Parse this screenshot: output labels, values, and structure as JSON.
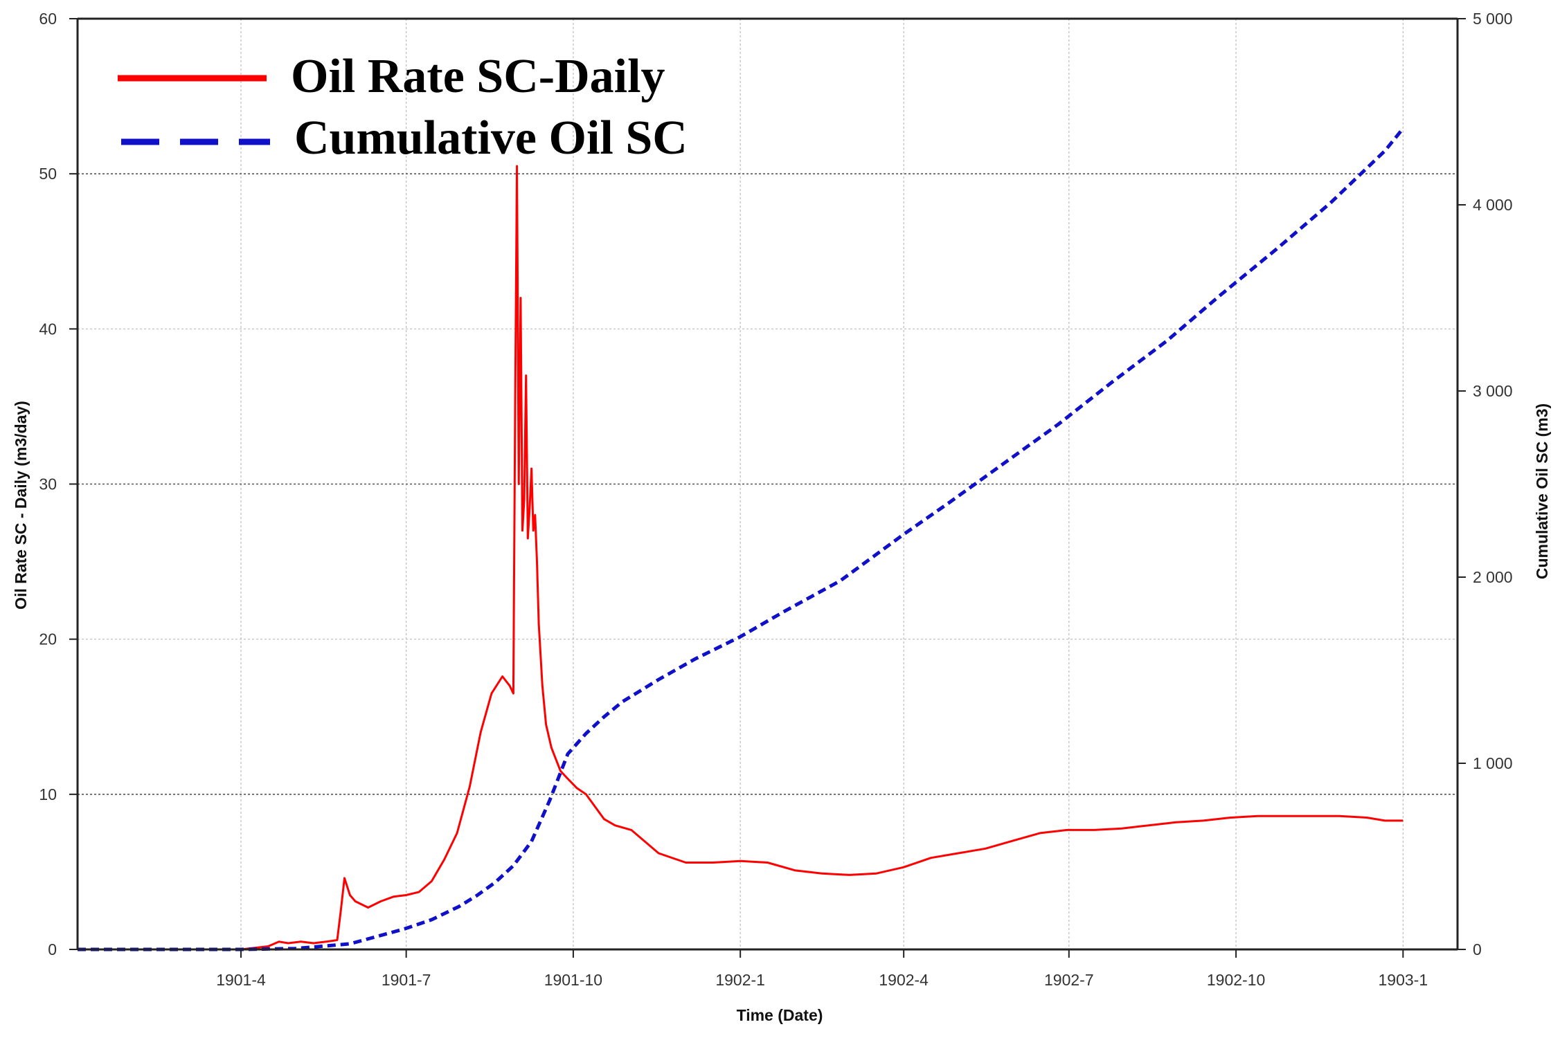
{
  "chart_data": {
    "type": "line",
    "xlabel": "Time (Date)",
    "ylabel": "Oil Rate SC - Daily (m3/day)",
    "y2label": "Cumulative Oil SC (m3)",
    "x_ticks": [
      "1901-4",
      "1901-7",
      "1901-10",
      "1902-1",
      "1902-4",
      "1902-7",
      "1902-10",
      "1903-1"
    ],
    "x_range_days": [
      0,
      760
    ],
    "x_tick_days": [
      90,
      181,
      273,
      365,
      455,
      546,
      638,
      730
    ],
    "y_ticks": [
      "0",
      "10",
      "20",
      "30",
      "40",
      "50",
      "60"
    ],
    "y_tick_values": [
      0,
      10,
      20,
      30,
      40,
      50,
      60
    ],
    "ylim": [
      0,
      60
    ],
    "y2_ticks": [
      "0",
      "1 000",
      "2 000",
      "3 000",
      "4 000",
      "5 000"
    ],
    "y2_tick_values": [
      0,
      1000,
      2000,
      3000,
      4000,
      5000
    ],
    "y2lim": [
      0,
      5000
    ],
    "legend_position": "top-left",
    "series": [
      {
        "name": "Oil Rate SC-Daily",
        "axis": "left",
        "color": "#ff0000",
        "style": "solid",
        "x": [
          0,
          90,
          105,
          111,
          116,
          123,
          130,
          137,
          143,
          145,
          147,
          150,
          153,
          160,
          167,
          174,
          181,
          188,
          195,
          202,
          209,
          216,
          222,
          228,
          234,
          238,
          240,
          241,
          242,
          243,
          244,
          245,
          246,
          247,
          248,
          249,
          250,
          251,
          252,
          253,
          254,
          256,
          258,
          261,
          266,
          270,
          275,
          280,
          285,
          290,
          296,
          305,
          320,
          335,
          350,
          365,
          380,
          395,
          410,
          425,
          440,
          455,
          470,
          485,
          500,
          515,
          530,
          545,
          560,
          575,
          590,
          605,
          620,
          635,
          650,
          665,
          680,
          695,
          710,
          720,
          730
        ],
        "values": [
          0,
          0,
          0.2,
          0.5,
          0.4,
          0.5,
          0.4,
          0.5,
          0.6,
          2.5,
          4.6,
          3.5,
          3.1,
          2.7,
          3.1,
          3.4,
          3.5,
          3.7,
          4.4,
          5.8,
          7.5,
          10.5,
          14.0,
          16.5,
          17.6,
          17.0,
          16.5,
          35.0,
          50.5,
          30.0,
          42.0,
          27.0,
          29.0,
          37.0,
          26.5,
          28.5,
          31.0,
          27.0,
          28.0,
          25.0,
          21.0,
          17.0,
          14.5,
          13.0,
          11.5,
          11.0,
          10.4,
          10.0,
          9.2,
          8.4,
          8.0,
          7.7,
          6.2,
          5.6,
          5.6,
          5.7,
          5.6,
          5.1,
          4.9,
          4.8,
          4.9,
          5.3,
          5.9,
          6.2,
          6.5,
          7.0,
          7.5,
          7.7,
          7.7,
          7.8,
          8.0,
          8.2,
          8.3,
          8.5,
          8.6,
          8.6,
          8.6,
          8.6,
          8.5,
          8.3,
          8.3
        ]
      },
      {
        "name": "Cumulative Oil SC",
        "axis": "right",
        "color": "#1010c8",
        "style": "dashed",
        "x": [
          0,
          90,
          120,
          150,
          165,
          180,
          195,
          210,
          220,
          230,
          240,
          250,
          260,
          270,
          280,
          290,
          300,
          320,
          340,
          365,
          390,
          420,
          455,
          480,
          510,
          540,
          570,
          600,
          630,
          660,
          690,
          720,
          730
        ],
        "values": [
          0,
          0,
          5,
          30,
          70,
          110,
          160,
          230,
          290,
          360,
          450,
          580,
          800,
          1050,
          1160,
          1250,
          1330,
          1450,
          1560,
          1680,
          1820,
          1980,
          2230,
          2400,
          2610,
          2820,
          3050,
          3270,
          3520,
          3760,
          4010,
          4290,
          4410
        ]
      }
    ]
  }
}
